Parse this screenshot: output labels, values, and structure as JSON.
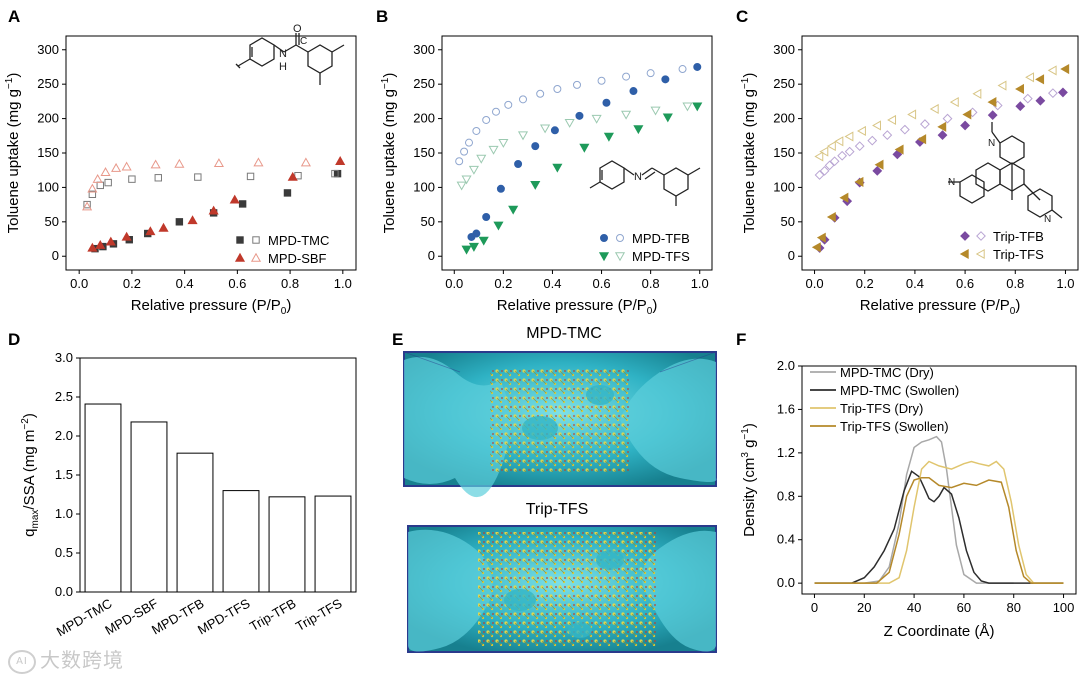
{
  "chart_data": [
    {
      "panel": "A",
      "type": "scatter",
      "xlabel": "Relative pressure (P/P0)",
      "ylabel": "Toluene uptake (mg g-1)",
      "xlim": [
        0,
        1.0
      ],
      "ylim": [
        0,
        300
      ],
      "xticks": [
        "0.0",
        "0.2",
        "0.4",
        "0.6",
        "0.8",
        "1.0"
      ],
      "yticks": [
        "0",
        "50",
        "100",
        "150",
        "200",
        "250",
        "300"
      ],
      "legend_position": "bottom-right",
      "inset": "MPD-TMC repeat unit (amide linkage)",
      "series": [
        {
          "name": "MPD-TMC",
          "role": "adsorption",
          "color": "#3a3a3a",
          "marker": "square",
          "filled": true,
          "x": [
            0.06,
            0.09,
            0.13,
            0.19,
            0.26,
            0.38,
            0.51,
            0.62,
            0.79,
            0.98
          ],
          "y": [
            11,
            14,
            18,
            24,
            33,
            50,
            63,
            76,
            92,
            120
          ]
        },
        {
          "name": "MPD-TMC",
          "role": "desorption",
          "color": "#7a7a7a",
          "marker": "square",
          "filled": false,
          "x": [
            0.03,
            0.05,
            0.08,
            0.11,
            0.2,
            0.3,
            0.45,
            0.65,
            0.83,
            0.97
          ],
          "y": [
            75,
            90,
            103,
            107,
            112,
            114,
            115,
            116,
            117,
            120
          ]
        },
        {
          "name": "MPD-SBF",
          "role": "adsorption",
          "color": "#c0392b",
          "marker": "triangle",
          "filled": true,
          "x": [
            0.05,
            0.08,
            0.12,
            0.18,
            0.27,
            0.32,
            0.43,
            0.51,
            0.59,
            0.81,
            0.99
          ],
          "y": [
            12,
            16,
            21,
            28,
            36,
            41,
            52,
            66,
            82,
            115,
            138
          ]
        },
        {
          "name": "MPD-SBF",
          "role": "desorption",
          "color": "#e8988a",
          "marker": "triangle",
          "filled": false,
          "x": [
            0.03,
            0.05,
            0.07,
            0.1,
            0.14,
            0.18,
            0.29,
            0.38,
            0.53,
            0.68,
            0.86
          ],
          "y": [
            72,
            98,
            112,
            122,
            128,
            130,
            133,
            134,
            135,
            136,
            136
          ]
        }
      ],
      "legend": [
        "MPD-TMC",
        "MPD-SBF"
      ]
    },
    {
      "panel": "B",
      "type": "scatter",
      "xlabel": "Relative pressure (P/P0)",
      "ylabel": "Toluene uptake (mg g-1)",
      "xlim": [
        0,
        1.0
      ],
      "ylim": [
        0,
        300
      ],
      "xticks": [
        "0.0",
        "0.2",
        "0.4",
        "0.6",
        "0.8",
        "1.0"
      ],
      "yticks": [
        "0",
        "50",
        "100",
        "150",
        "200",
        "250",
        "300"
      ],
      "legend_position": "bottom-right",
      "inset": "MPD-TFB repeat unit (imine linkage)",
      "series": [
        {
          "name": "MPD-TFB",
          "role": "adsorption",
          "color": "#2f5fa8",
          "marker": "circle",
          "filled": true,
          "x": [
            0.07,
            0.09,
            0.13,
            0.19,
            0.26,
            0.33,
            0.41,
            0.51,
            0.62,
            0.73,
            0.86,
            0.99
          ],
          "y": [
            28,
            33,
            57,
            98,
            134,
            160,
            183,
            204,
            223,
            240,
            257,
            275
          ]
        },
        {
          "name": "MPD-TFB",
          "role": "desorption",
          "color": "#8fa6cf",
          "marker": "circle",
          "filled": false,
          "x": [
            0.02,
            0.04,
            0.06,
            0.09,
            0.13,
            0.17,
            0.22,
            0.28,
            0.35,
            0.42,
            0.5,
            0.6,
            0.7,
            0.8,
            0.93
          ],
          "y": [
            138,
            152,
            165,
            182,
            198,
            210,
            220,
            228,
            236,
            243,
            249,
            255,
            261,
            266,
            272
          ]
        },
        {
          "name": "MPD-TFS",
          "role": "adsorption",
          "color": "#1e9a5a",
          "marker": "triangle-down",
          "filled": true,
          "x": [
            0.05,
            0.08,
            0.12,
            0.18,
            0.24,
            0.33,
            0.42,
            0.53,
            0.63,
            0.75,
            0.87,
            0.99
          ],
          "y": [
            10,
            14,
            23,
            45,
            68,
            104,
            129,
            158,
            174,
            185,
            202,
            218
          ]
        },
        {
          "name": "MPD-TFS",
          "role": "desorption",
          "color": "#9bc9b0",
          "marker": "triangle-down",
          "filled": false,
          "x": [
            0.03,
            0.05,
            0.08,
            0.11,
            0.16,
            0.2,
            0.28,
            0.37,
            0.47,
            0.58,
            0.7,
            0.82,
            0.95
          ],
          "y": [
            103,
            112,
            126,
            142,
            155,
            165,
            176,
            186,
            194,
            200,
            206,
            212,
            218
          ]
        }
      ],
      "legend": [
        "MPD-TFB",
        "MPD-TFS"
      ]
    },
    {
      "panel": "C",
      "type": "scatter",
      "xlabel": "Relative pressure (P/P0)",
      "ylabel": "Toluene uptake (mg g-1)",
      "xlim": [
        0,
        1.0
      ],
      "ylim": [
        0,
        300
      ],
      "xticks": [
        "0.0",
        "0.2",
        "0.4",
        "0.6",
        "0.8",
        "1.0"
      ],
      "yticks": [
        "0",
        "50",
        "100",
        "150",
        "200",
        "250",
        "300"
      ],
      "legend_position": "bottom-right",
      "inset": "Triptycene-based imine structure",
      "series": [
        {
          "name": "Trip-TFB",
          "role": "adsorption",
          "color": "#7a4aa0",
          "marker": "diamond",
          "filled": true,
          "x": [
            0.02,
            0.04,
            0.08,
            0.13,
            0.18,
            0.25,
            0.33,
            0.42,
            0.51,
            0.6,
            0.71,
            0.82,
            0.9,
            0.99
          ],
          "y": [
            12,
            24,
            56,
            80,
            107,
            124,
            148,
            166,
            176,
            190,
            205,
            218,
            226,
            238
          ]
        },
        {
          "name": "Trip-TFB",
          "role": "desorption",
          "color": "#b9a5d3",
          "marker": "diamond",
          "filled": false,
          "x": [
            0.02,
            0.04,
            0.06,
            0.08,
            0.11,
            0.14,
            0.18,
            0.23,
            0.29,
            0.36,
            0.44,
            0.53,
            0.63,
            0.73,
            0.85,
            0.95
          ],
          "y": [
            118,
            124,
            132,
            138,
            146,
            152,
            160,
            168,
            176,
            184,
            192,
            200,
            209,
            219,
            229,
            237
          ]
        },
        {
          "name": "Trip-TFS",
          "role": "adsorption",
          "color": "#b5892a",
          "marker": "triangle-left",
          "filled": true,
          "x": [
            0.01,
            0.03,
            0.07,
            0.12,
            0.18,
            0.26,
            0.34,
            0.43,
            0.51,
            0.61,
            0.71,
            0.82,
            0.9,
            1.0
          ],
          "y": [
            13,
            27,
            57,
            85,
            108,
            133,
            155,
            170,
            188,
            206,
            224,
            243,
            257,
            272
          ]
        },
        {
          "name": "Trip-TFS",
          "role": "desorption",
          "color": "#d8c585",
          "marker": "triangle-left",
          "filled": false,
          "x": [
            0.02,
            0.04,
            0.07,
            0.1,
            0.14,
            0.19,
            0.25,
            0.31,
            0.39,
            0.48,
            0.56,
            0.65,
            0.75,
            0.86,
            0.95
          ],
          "y": [
            145,
            152,
            160,
            167,
            174,
            182,
            190,
            198,
            206,
            214,
            224,
            236,
            248,
            260,
            270
          ]
        }
      ],
      "legend": [
        "Trip-TFB",
        "Trip-TFS"
      ]
    },
    {
      "panel": "D",
      "type": "bar",
      "ylabel": "qmax/SSA (mg m-2)",
      "ylim": [
        0,
        3.0
      ],
      "yticks": [
        "0.0",
        "0.5",
        "1.0",
        "1.5",
        "2.0",
        "2.5",
        "3.0"
      ],
      "categories": [
        "MPD-TMC",
        "MPD-SBF",
        "MPD-TFB",
        "MPD-TFS",
        "Trip-TFB",
        "Trip-TFS"
      ],
      "values": [
        2.41,
        2.18,
        1.78,
        1.3,
        1.22,
        1.23
      ]
    },
    {
      "panel": "F",
      "type": "line",
      "xlabel": "Z Coordinate (Å)",
      "ylabel": "Density (cm3 g-1)",
      "xlim": [
        -5,
        105
      ],
      "ylim": [
        -0.1,
        2.0
      ],
      "xticks": [
        "0",
        "20",
        "40",
        "60",
        "80",
        "100"
      ],
      "yticks": [
        "0.0",
        "0.4",
        "0.8",
        "1.2",
        "1.6",
        "2.0"
      ],
      "legend_position": "top-left",
      "series": [
        {
          "name": "MPD-TMC (Dry)",
          "color": "#a8a8a8",
          "x": [
            0,
            20,
            26,
            30,
            34,
            37,
            40,
            43,
            46,
            49,
            51,
            53,
            55,
            57,
            60,
            65,
            70,
            80
          ],
          "y": [
            0,
            0,
            0.02,
            0.15,
            0.55,
            1.0,
            1.25,
            1.3,
            1.32,
            1.35,
            1.3,
            1.05,
            0.7,
            0.35,
            0.08,
            0,
            0,
            0
          ]
        },
        {
          "name": "MPD-TMC (Swollen)",
          "color": "#2d2d2d",
          "x": [
            0,
            15,
            20,
            24,
            28,
            32,
            36,
            39,
            42,
            44,
            46,
            48,
            50,
            52,
            55,
            58,
            61,
            64,
            67,
            70,
            75,
            100
          ],
          "y": [
            0,
            0,
            0.05,
            0.15,
            0.3,
            0.5,
            0.85,
            1.03,
            0.98,
            0.88,
            0.78,
            0.75,
            0.8,
            0.88,
            0.82,
            0.6,
            0.3,
            0.1,
            0.02,
            0,
            0,
            0
          ]
        },
        {
          "name": "Trip-TFS (Dry)",
          "color": "#e0c56e",
          "x": [
            0,
            30,
            34,
            37,
            40,
            43,
            46,
            50,
            55,
            60,
            63,
            66,
            70,
            73,
            76,
            79,
            82,
            85,
            88,
            100
          ],
          "y": [
            0,
            0,
            0.05,
            0.3,
            0.7,
            1.05,
            1.12,
            1.08,
            1.05,
            1.1,
            1.12,
            1.1,
            1.08,
            1.12,
            1.05,
            0.75,
            0.35,
            0.08,
            0,
            0
          ]
        },
        {
          "name": "Trip-TFS (Swollen)",
          "color": "#b5892a",
          "x": [
            0,
            25,
            30,
            34,
            37,
            40,
            43,
            46,
            50,
            55,
            60,
            65,
            70,
            75,
            78,
            81,
            84,
            87,
            90,
            100
          ],
          "y": [
            0,
            0,
            0.1,
            0.45,
            0.8,
            0.95,
            0.97,
            0.97,
            0.9,
            0.88,
            0.92,
            0.9,
            0.95,
            0.93,
            0.7,
            0.3,
            0.06,
            0,
            0,
            0
          ]
        }
      ]
    }
  ],
  "panels": {
    "a": {
      "label": "A",
      "inset_atoms": {
        "o": "O",
        "n": "N",
        "h": "H",
        "c": "C"
      }
    },
    "b": {
      "label": "B",
      "inset_atoms": {
        "n": "N"
      }
    },
    "c": {
      "label": "C",
      "inset_atoms": {
        "n1": "N",
        "n2": "N",
        "n3": "N"
      }
    },
    "d": {
      "label": "D"
    },
    "e": {
      "label": "E",
      "title_top": "MPD-TMC",
      "title_bottom": "Trip-TFS"
    },
    "f": {
      "label": "F"
    }
  },
  "axes_text": {
    "xlabel_pressure": "Relative pressure (P/P",
    "xlabel_pressure_sub": "0",
    "xlabel_pressure_end": ")",
    "ylabel_uptake": "Toluene uptake (mg g",
    "ylabel_uptake_sup": "−1",
    "ylabel_uptake_end": ")",
    "ylabel_d_main": "q",
    "ylabel_d_sub": "max",
    "ylabel_d_mid": "/SSA (mg m",
    "ylabel_d_sup": "−2",
    "ylabel_d_end": ")",
    "ylabel_f_main": "Density (cm",
    "ylabel_f_sup1": "3",
    "ylabel_f_mid": " g",
    "ylabel_f_sup2": "−1",
    "ylabel_f_end": ")",
    "xlabel_f": "Z Coordinate (Å)"
  },
  "watermark": {
    "badge": "AI",
    "text": "大数跨境"
  }
}
